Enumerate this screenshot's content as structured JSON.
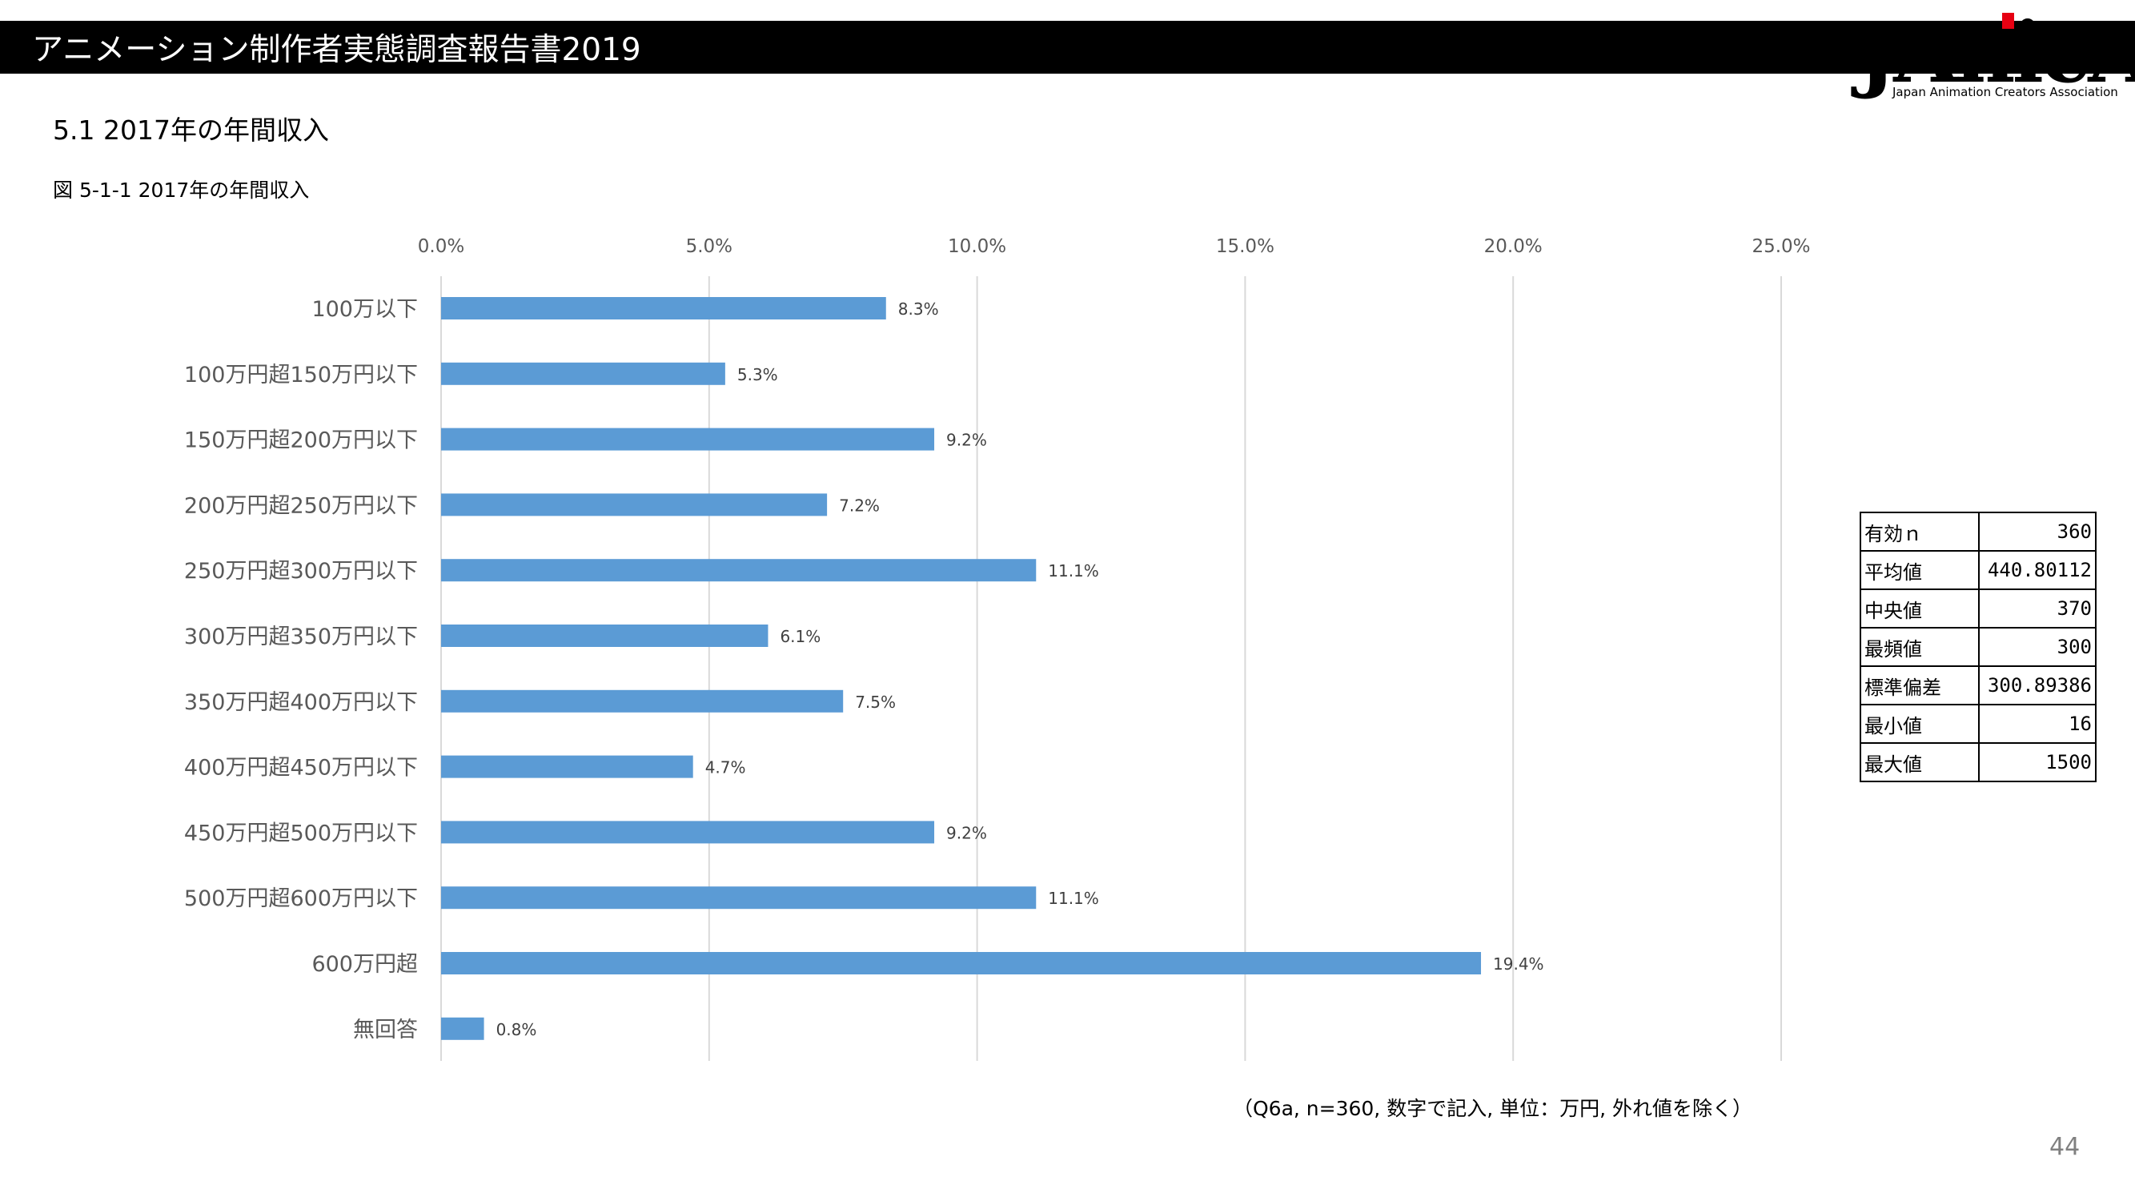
{
  "header": {
    "title": "アニメーション制作者実態調査報告書2019"
  },
  "logo": {
    "text": "JAnicA",
    "subtitle": "Japan Animation Creators Association",
    "accent_color": "#e60012"
  },
  "section_title": "5.1  2017年の年間収入",
  "figure_caption": "図 5-1-1  2017年の年間収入",
  "chart_data": {
    "type": "bar",
    "orientation": "horizontal",
    "categories": [
      "100万以下",
      "100万円超150万円以下",
      "150万円超200万円以下",
      "200万円超250万円以下",
      "250万円超300万円以下",
      "300万円超350万円以下",
      "350万円超400万円以下",
      "400万円超450万円以下",
      "450万円超500万円以下",
      "500万円超600万円以下",
      "600万円超",
      "無回答"
    ],
    "values": [
      8.3,
      5.3,
      9.2,
      7.2,
      11.1,
      6.1,
      7.5,
      4.7,
      9.2,
      11.1,
      19.4,
      0.8
    ],
    "value_labels": [
      "8.3%",
      "5.3%",
      "9.2%",
      "7.2%",
      "11.1%",
      "6.1%",
      "7.5%",
      "4.7%",
      "9.2%",
      "11.1%",
      "19.4%",
      "0.8%"
    ],
    "x_ticks": [
      0,
      5,
      10,
      15,
      20,
      25
    ],
    "x_tick_labels": [
      "0.0%",
      "5.0%",
      "10.0%",
      "15.0%",
      "20.0%",
      "25.0%"
    ],
    "xlim": [
      0,
      25
    ],
    "x_axis_position": "top",
    "grid": true,
    "bar_color": "#5b9bd5",
    "gridline_color": "#d9d9d9"
  },
  "stats_table": {
    "rows": [
      {
        "label": "有効ｎ",
        "value": "360"
      },
      {
        "label": "平均値",
        "value": "440.80112"
      },
      {
        "label": "中央値",
        "value": "370"
      },
      {
        "label": "最頻値",
        "value": "300"
      },
      {
        "label": "標準偏差",
        "value": "300.89386"
      },
      {
        "label": "最小値",
        "value": "16"
      },
      {
        "label": "最大値",
        "value": "1500"
      }
    ]
  },
  "note": "（Q6a, n=360, 数字で記入, 単位：万円, 外れ値を除く）",
  "page_number": "44"
}
